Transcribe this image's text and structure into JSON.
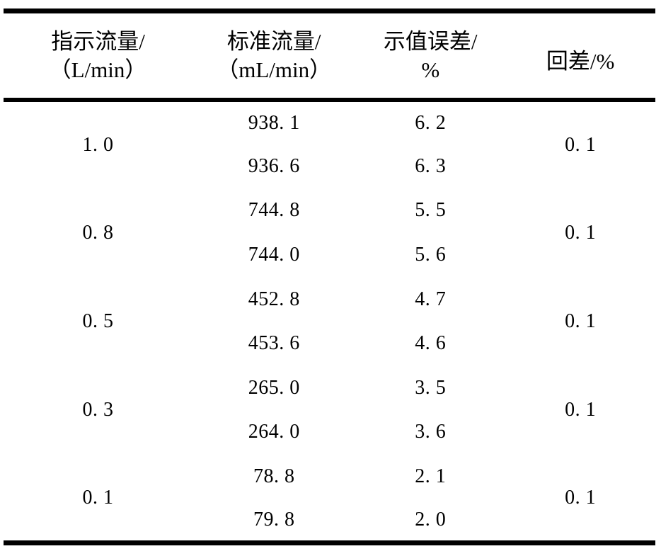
{
  "table": {
    "columns": [
      {
        "line1": "指示流量/",
        "line2": "（L/min）"
      },
      {
        "line1": "标准流量/",
        "line2": "（mL/min）"
      },
      {
        "line1": "示值误差/",
        "line2": "%"
      },
      {
        "line1": "回差/%"
      }
    ],
    "groups": [
      {
        "indicated": "1. 0",
        "standard1": "938. 1",
        "error1": "6. 2",
        "standard2": "936. 6",
        "error2": "6. 3",
        "hysteresis": "0. 1"
      },
      {
        "indicated": "0. 8",
        "standard1": "744. 8",
        "error1": "5. 5",
        "standard2": "744. 0",
        "error2": "5. 6",
        "hysteresis": "0. 1"
      },
      {
        "indicated": "0. 5",
        "standard1": "452. 8",
        "error1": "4. 7",
        "standard2": "453. 6",
        "error2": "4. 6",
        "hysteresis": "0. 1"
      },
      {
        "indicated": "0. 3",
        "standard1": "265. 0",
        "error1": "3. 5",
        "standard2": "264. 0",
        "error2": "3. 6",
        "hysteresis": "0. 1"
      },
      {
        "indicated": "0. 1",
        "standard1": "78. 8",
        "error1": "2. 1",
        "standard2": "79. 8",
        "error2": "2. 0",
        "hysteresis": "0. 1"
      }
    ]
  }
}
